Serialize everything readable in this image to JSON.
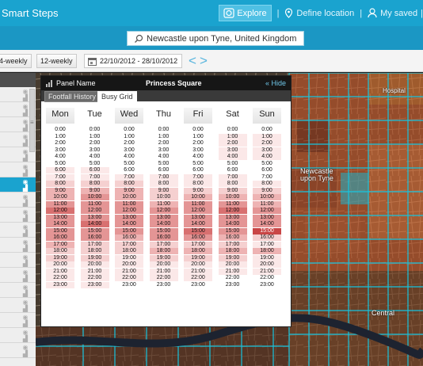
{
  "app": {
    "title": "Smart Steps"
  },
  "nav": {
    "explore": "Explore",
    "define_location": "Define location",
    "my_saved": "My saved",
    "separator": "|"
  },
  "search": {
    "value": "Newcastle upon Tyne, United Kingdom"
  },
  "toolbar": {
    "four_weekly": "4-weekly",
    "twelve_weekly": "12-weekly",
    "date_range": "22/10/2012 - 28/10/2012",
    "prev": "<",
    "next": ">"
  },
  "colors": {
    "accent": "#1aa3cf",
    "heat_levels": [
      "#fbe8e8",
      "#f5d0d0",
      "#eeb3b3",
      "#e49595",
      "#d87070",
      "#c94545"
    ]
  },
  "map": {
    "labels": [
      "Newcastle",
      "upon Tyne",
      "Central",
      "Hospital"
    ]
  },
  "panel": {
    "label": "Panel Name",
    "name": "Princess Square",
    "hide": "« Hide",
    "tabs": [
      "Footfall History",
      "Busy Grid"
    ],
    "active_tab": 1,
    "days": [
      "Mon",
      "Tue",
      "Wed",
      "Thu",
      "Fri",
      "Sat",
      "Sun"
    ],
    "hours": [
      "0:00",
      "1:00",
      "2:00",
      "3:00",
      "4:00",
      "5:00",
      "6:00",
      "7:00",
      "8:00",
      "9:00",
      "10:00",
      "11:00",
      "12:00",
      "13:00",
      "14:00",
      "15:00",
      "16:00",
      "17:00",
      "18:00",
      "19:00",
      "20:00",
      "21:00",
      "22:00",
      "23:00"
    ],
    "busy_levels": [
      [
        0,
        0,
        0,
        0,
        0,
        0,
        0
      ],
      [
        0,
        0,
        0,
        0,
        0,
        1,
        1
      ],
      [
        0,
        0,
        0,
        0,
        0,
        1,
        1
      ],
      [
        0,
        0,
        0,
        0,
        0,
        1,
        1
      ],
      [
        0,
        0,
        0,
        0,
        0,
        1,
        1
      ],
      [
        0,
        0,
        0,
        0,
        0,
        0,
        0
      ],
      [
        1,
        1,
        0,
        0,
        0,
        0,
        0
      ],
      [
        1,
        1,
        1,
        1,
        1,
        1,
        0
      ],
      [
        2,
        2,
        2,
        1,
        1,
        1,
        1
      ],
      [
        3,
        3,
        3,
        2,
        2,
        2,
        2
      ],
      [
        3,
        4,
        3,
        2,
        3,
        3,
        3
      ],
      [
        4,
        4,
        4,
        3,
        4,
        4,
        3
      ],
      [
        5,
        4,
        4,
        4,
        4,
        5,
        4
      ],
      [
        4,
        4,
        4,
        4,
        4,
        4,
        4
      ],
      [
        4,
        5,
        4,
        4,
        4,
        4,
        4
      ],
      [
        4,
        4,
        4,
        4,
        5,
        4,
        6
      ],
      [
        4,
        4,
        3,
        4,
        4,
        3,
        2
      ],
      [
        3,
        2,
        2,
        2,
        2,
        2,
        1
      ],
      [
        2,
        2,
        2,
        3,
        3,
        3,
        3
      ],
      [
        2,
        2,
        1,
        2,
        2,
        2,
        1
      ],
      [
        1,
        1,
        1,
        1,
        1,
        1,
        1
      ],
      [
        1,
        1,
        1,
        1,
        1,
        1,
        1
      ],
      [
        1,
        1,
        1,
        1,
        1,
        0,
        0
      ],
      [
        1,
        1,
        0,
        0,
        0,
        0,
        0
      ]
    ]
  }
}
